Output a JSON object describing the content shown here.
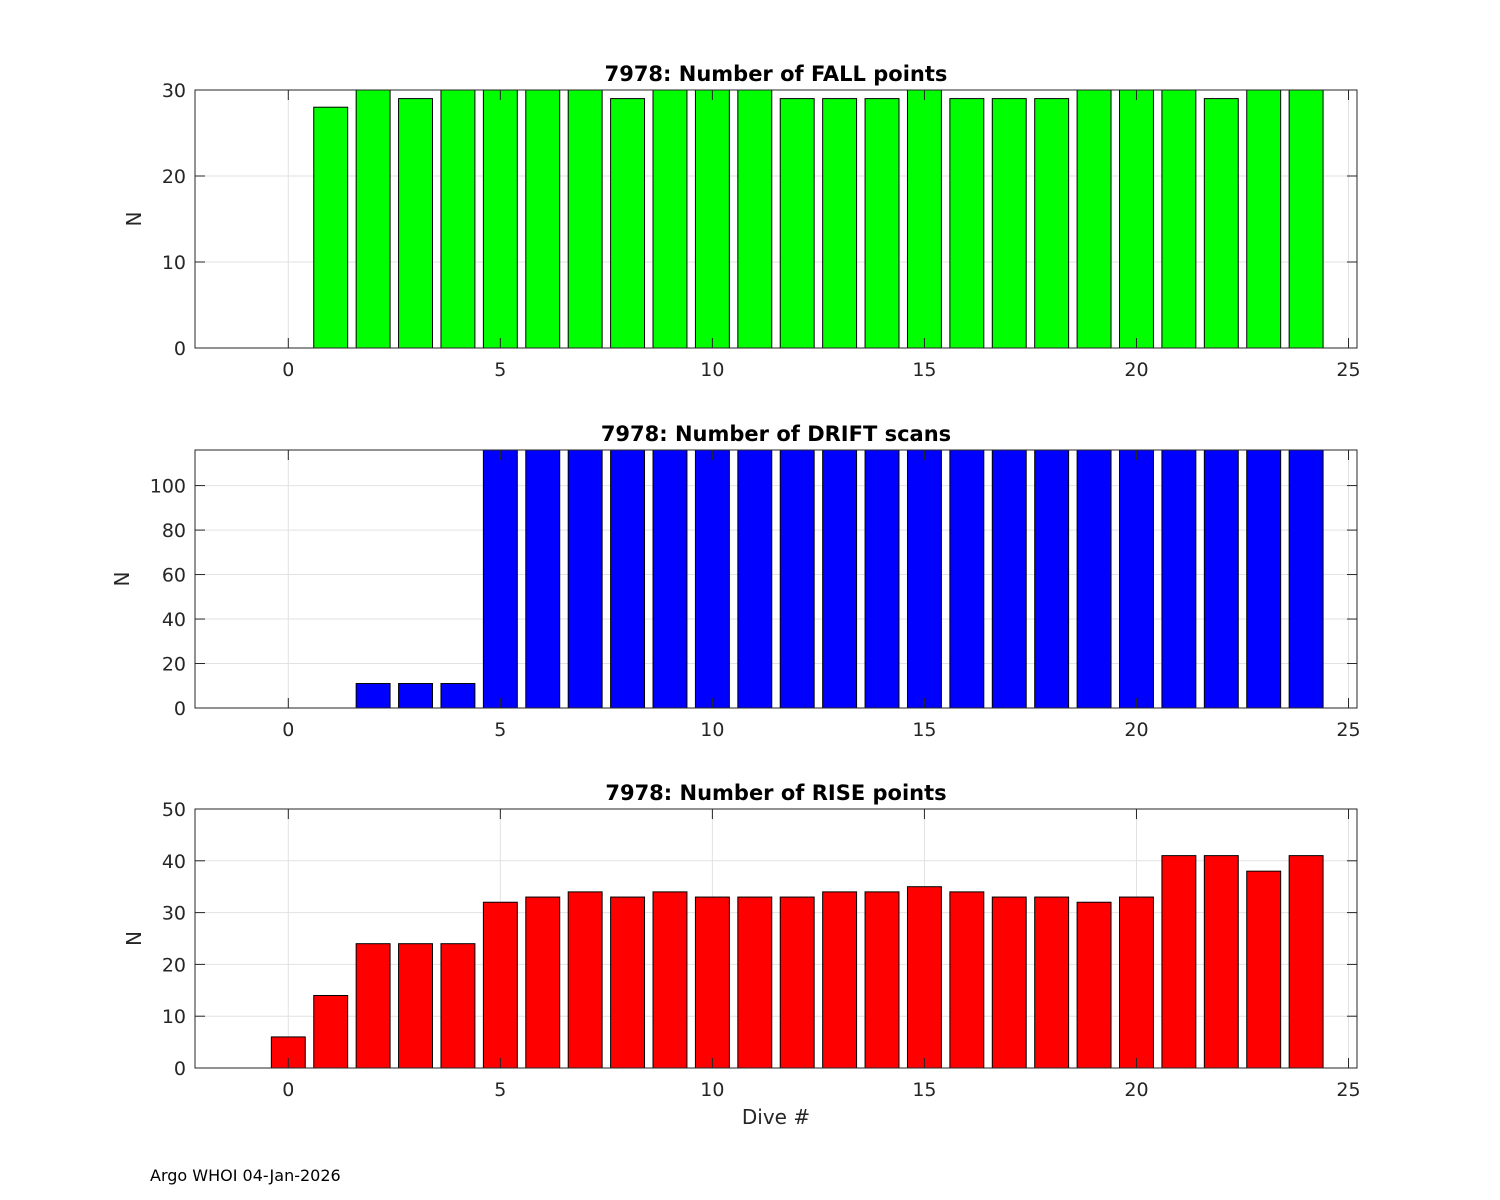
{
  "footer": "Argo WHOI 04-Jan-2026",
  "chart_data": [
    {
      "type": "bar",
      "title": "7978: Number of FALL points",
      "xlabel": "",
      "ylabel": "N",
      "xlim": [
        -2.2,
        25.2
      ],
      "ylim": [
        0,
        30
      ],
      "xticks": [
        0,
        5,
        10,
        15,
        20,
        25
      ],
      "yticks": [
        0,
        10,
        20,
        30
      ],
      "grid": true,
      "color": "#00ff00",
      "x": [
        1,
        2,
        3,
        4,
        5,
        6,
        7,
        8,
        9,
        10,
        11,
        12,
        13,
        14,
        15,
        16,
        17,
        18,
        19,
        20,
        21,
        22,
        23,
        24
      ],
      "values": [
        28,
        30,
        29,
        30,
        30,
        30,
        30,
        29,
        30,
        30,
        30,
        29,
        29,
        29,
        30,
        29,
        29,
        29,
        30,
        30,
        30,
        29,
        30,
        30
      ]
    },
    {
      "type": "bar",
      "title": "7978: Number of DRIFT scans",
      "xlabel": "",
      "ylabel": "N",
      "xlim": [
        -2.2,
        25.2
      ],
      "ylim": [
        0,
        116
      ],
      "xticks": [
        0,
        5,
        10,
        15,
        20,
        25
      ],
      "yticks": [
        0,
        20,
        40,
        60,
        80,
        100
      ],
      "grid": true,
      "color": "#0000ff",
      "x": [
        -1,
        0,
        1,
        2,
        3,
        4,
        5,
        6,
        7,
        8,
        9,
        10,
        11,
        12,
        13,
        14,
        15,
        16,
        17,
        18,
        19,
        20,
        21,
        22,
        23,
        24
      ],
      "values": [
        0,
        0,
        0,
        11,
        11,
        11,
        116,
        116,
        116,
        116,
        116,
        116,
        116,
        116,
        116,
        116,
        116,
        116,
        116,
        116,
        116,
        116,
        116,
        116,
        116,
        116
      ]
    },
    {
      "type": "bar",
      "title": "7978: Number of RISE points",
      "xlabel": "Dive #",
      "ylabel": "N",
      "xlim": [
        -2.2,
        25.2
      ],
      "ylim": [
        0,
        50
      ],
      "xticks": [
        0,
        5,
        10,
        15,
        20,
        25
      ],
      "yticks": [
        0,
        10,
        20,
        30,
        40,
        50
      ],
      "grid": true,
      "color": "#ff0000",
      "x": [
        0,
        1,
        2,
        3,
        4,
        5,
        6,
        7,
        8,
        9,
        10,
        11,
        12,
        13,
        14,
        15,
        16,
        17,
        18,
        19,
        20,
        21,
        22,
        23,
        24
      ],
      "values": [
        6,
        14,
        24,
        24,
        24,
        32,
        33,
        34,
        33,
        34,
        33,
        33,
        33,
        34,
        34,
        35,
        34,
        33,
        33,
        32,
        33,
        41,
        41,
        38,
        41
      ]
    }
  ]
}
